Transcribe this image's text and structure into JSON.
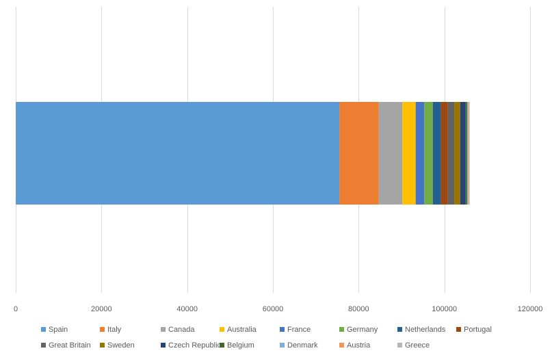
{
  "chart_data": {
    "type": "bar",
    "orientation": "horizontal",
    "stacked": true,
    "title": "",
    "xlabel": "",
    "ylabel": "",
    "xlim": [
      0,
      120000
    ],
    "x_ticks": [
      0,
      20000,
      40000,
      60000,
      80000,
      100000,
      120000
    ],
    "x_tick_labels": [
      "0",
      "20000",
      "40000",
      "60000",
      "80000",
      "100000",
      "120000"
    ],
    "grid": true,
    "legend_position": "bottom",
    "categories": [
      ""
    ],
    "series": [
      {
        "name": "Spain",
        "values": [
          75500
        ],
        "color": "#5B9BD5"
      },
      {
        "name": "Italy",
        "values": [
          9200
        ],
        "color": "#ED7D31"
      },
      {
        "name": "Canada",
        "values": [
          5500
        ],
        "color": "#A5A5A5"
      },
      {
        "name": "Australia",
        "values": [
          3100
        ],
        "color": "#FFC000"
      },
      {
        "name": "France",
        "values": [
          2000
        ],
        "color": "#4472C4"
      },
      {
        "name": "Germany",
        "values": [
          2000
        ],
        "color": "#70AD47"
      },
      {
        "name": "Netherlands",
        "values": [
          1900
        ],
        "color": "#255E91"
      },
      {
        "name": "Portugal",
        "values": [
          1600
        ],
        "color": "#9E480E"
      },
      {
        "name": "Great Britain",
        "values": [
          1500
        ],
        "color": "#636363"
      },
      {
        "name": "Sweden",
        "values": [
          1400
        ],
        "color": "#997300"
      },
      {
        "name": "Czech Republic",
        "values": [
          1200
        ],
        "color": "#264478"
      },
      {
        "name": "Belgium",
        "values": [
          400
        ],
        "color": "#43682B"
      },
      {
        "name": "Denmark",
        "values": [
          200
        ],
        "color": "#7CAFDD"
      },
      {
        "name": "Austria",
        "values": [
          200
        ],
        "color": "#F1975A"
      },
      {
        "name": "Greece",
        "values": [
          200
        ],
        "color": "#B7B7B7"
      }
    ]
  }
}
